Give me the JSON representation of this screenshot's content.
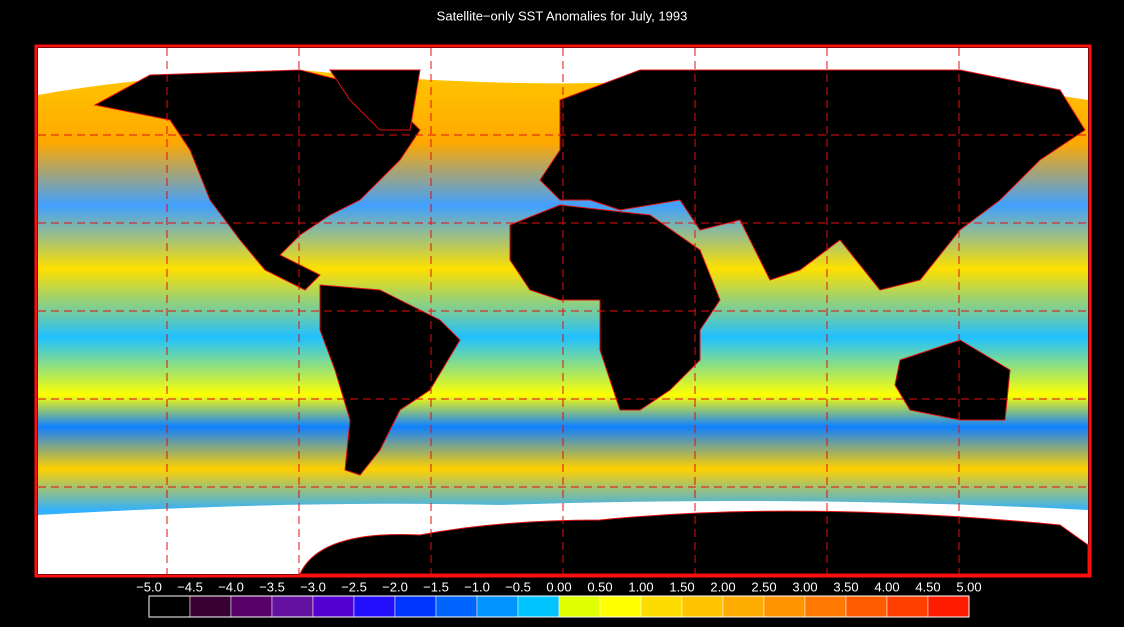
{
  "title": "Satellite−only SST Anomalies for July, 1993",
  "colorbar": {
    "labels": [
      "−5.0",
      "−4.5",
      "−4.0",
      "−3.5",
      "−3.0",
      "−2.5",
      "−2.0",
      "−1.5",
      "−1.0",
      "−0.5",
      "0.00",
      "0.50",
      "1.00",
      "1.50",
      "2.00",
      "2.50",
      "3.00",
      "3.50",
      "4.00",
      "4.50",
      "5.00"
    ],
    "colors": [
      "#000000",
      "#3a0034",
      "#560068",
      "#6410a0",
      "#5400d0",
      "#2410ff",
      "#0034ff",
      "#0064ff",
      "#0094ff",
      "#00c4ff",
      "#e0ff00",
      "#ffff00",
      "#ffdc00",
      "#ffc400",
      "#ffac00",
      "#ff9400",
      "#ff7800",
      "#ff5c00",
      "#ff4000",
      "#ff1c00"
    ]
  }
}
